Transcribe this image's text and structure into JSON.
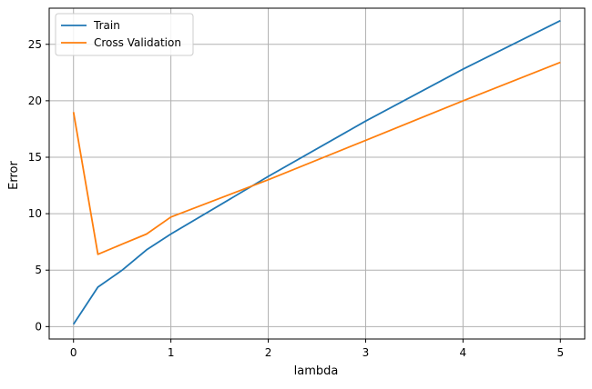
{
  "chart_data": {
    "type": "line",
    "title": "",
    "xlabel": "lambda",
    "ylabel": "Error",
    "xlim": [
      -0.25,
      5.25
    ],
    "ylim": [
      -1.1,
      28.2
    ],
    "xticks": [
      0,
      1,
      2,
      3,
      4,
      5
    ],
    "yticks": [
      0,
      5,
      10,
      15,
      20,
      25
    ],
    "grid": true,
    "legend_position": "top-left",
    "series": [
      {
        "name": "Train",
        "color": "#1f77b4",
        "x": [
          0,
          0.25,
          0.5,
          0.75,
          1,
          2,
          3,
          4,
          5
        ],
        "y": [
          0.2,
          3.5,
          5.0,
          6.8,
          8.2,
          13.3,
          18.2,
          22.8,
          27.1
        ]
      },
      {
        "name": "Cross Validation",
        "color": "#ff7f0e",
        "x": [
          0,
          0.25,
          0.5,
          0.75,
          1,
          2,
          3,
          4,
          5
        ],
        "y": [
          19.0,
          6.4,
          7.3,
          8.2,
          9.7,
          13.0,
          16.5,
          20.0,
          23.4
        ]
      }
    ]
  }
}
